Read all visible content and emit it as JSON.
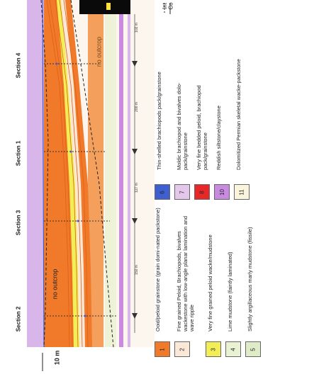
{
  "sections": [
    {
      "label": "Section 2"
    },
    {
      "label": "Section 3"
    },
    {
      "label": "Section 1"
    },
    {
      "label": "Section 4"
    }
  ],
  "distances": [
    "150 m",
    "127 m",
    "200 m",
    "102 m"
  ],
  "annotations": {
    "no_outcrop_1": "no outcrop",
    "no_outcrop_2": "no outcrop",
    "scale": "10 m",
    "legend_top_1": "Co",
    "legend_top_2": "Int"
  },
  "legend": [
    {
      "num": "1",
      "color": "#f07a2a",
      "text": "Ooid/peloid grainstone (grain domi-nated packstone)"
    },
    {
      "num": "2",
      "color": "#fbe8d6",
      "text": "Fine grained Peloid, Brachiopods, bivalves wackestone with low-angle planar lamination and wave ripple"
    },
    {
      "num": "3",
      "color": "#f2ee55",
      "text": "Very fine grained peloid wacke/mudstone"
    },
    {
      "num": "4",
      "color": "#eaf2d4",
      "text": "Lime mudstone (faintly laminated)"
    },
    {
      "num": "5",
      "color": "#e0ecc8",
      "text": "Slightly argillaceous marly mudstone (fissile)"
    },
    {
      "num": "6",
      "color": "#3f5fd0",
      "text": "Thin-shelled brachiopods pack/grainstone"
    },
    {
      "num": "7",
      "color": "#e3c8ec",
      "text": "Moldic brachiopod and bivalves dolo-pack/grainstone"
    },
    {
      "num": "8",
      "color": "#e82828",
      "text": "Very fine bedded peloid, brachiopod pack/grainstone"
    },
    {
      "num": "10",
      "color": "#c98be0",
      "text": "Reddish siltstone/claystone"
    },
    {
      "num": "11",
      "color": "#fbf4dc",
      "text": "Dolomitized Permian skeletal wacke-packstone"
    }
  ]
}
